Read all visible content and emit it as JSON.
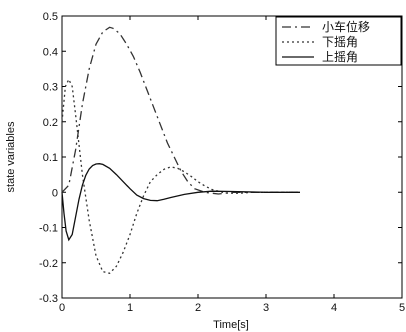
{
  "chart_data": {
    "type": "line",
    "xlabel": "Time[s]",
    "ylabel": "state variables",
    "xlim": [
      0,
      5
    ],
    "ylim": [
      -0.3,
      0.5
    ],
    "xticks": [
      "0",
      "1",
      "2",
      "3",
      "4",
      "5"
    ],
    "yticks": [
      "-0.3",
      "-0.2",
      "-0.1",
      "0",
      "0.1",
      "0.2",
      "0.3",
      "0.4",
      "0.5"
    ],
    "grid": false,
    "legend_position": "top-right",
    "series": [
      {
        "name": "小车位移",
        "style": "dashdot",
        "color": "#333333",
        "x": [
          0,
          0.1,
          0.2,
          0.3,
          0.4,
          0.5,
          0.6,
          0.7,
          0.75,
          0.85,
          0.95,
          1.05,
          1.15,
          1.25,
          1.35,
          1.45,
          1.55,
          1.65,
          1.75,
          1.85,
          1.95,
          2.1,
          2.3,
          2.5,
          2.8,
          3.2,
          3.5
        ],
        "y": [
          0,
          0.02,
          0.12,
          0.25,
          0.35,
          0.42,
          0.455,
          0.468,
          0.465,
          0.45,
          0.42,
          0.385,
          0.34,
          0.29,
          0.24,
          0.19,
          0.14,
          0.1,
          0.06,
          0.03,
          0.01,
          0.0,
          -0.005,
          0.0,
          0.0,
          0.0,
          0.0
        ]
      },
      {
        "name": "下摇角",
        "style": "dotted",
        "color": "#333333",
        "x": [
          0,
          0.05,
          0.1,
          0.15,
          0.2,
          0.3,
          0.4,
          0.5,
          0.6,
          0.7,
          0.8,
          0.9,
          1.0,
          1.1,
          1.2,
          1.3,
          1.4,
          1.5,
          1.6,
          1.7,
          1.8,
          1.9,
          2.0,
          2.1,
          2.2,
          2.4,
          2.6,
          2.8,
          3.0,
          3.5
        ],
        "y": [
          0.2,
          0.3,
          0.32,
          0.3,
          0.22,
          0.05,
          -0.08,
          -0.18,
          -0.225,
          -0.23,
          -0.21,
          -0.17,
          -0.12,
          -0.06,
          -0.01,
          0.03,
          0.05,
          0.065,
          0.072,
          0.068,
          0.058,
          0.045,
          0.03,
          0.018,
          0.008,
          -0.002,
          -0.003,
          0.0,
          0.0,
          0.0
        ]
      },
      {
        "name": "上摇角",
        "style": "solid",
        "color": "#111111",
        "x": [
          0,
          0.03,
          0.06,
          0.1,
          0.15,
          0.2,
          0.25,
          0.3,
          0.35,
          0.4,
          0.45,
          0.5,
          0.55,
          0.6,
          0.7,
          0.8,
          0.9,
          1.0,
          1.1,
          1.2,
          1.3,
          1.4,
          1.5,
          1.6,
          1.8,
          2.0,
          2.2,
          2.5,
          3.0,
          3.5
        ],
        "y": [
          0,
          -0.06,
          -0.11,
          -0.135,
          -0.12,
          -0.07,
          -0.02,
          0.02,
          0.048,
          0.066,
          0.076,
          0.08,
          0.081,
          0.079,
          0.068,
          0.05,
          0.03,
          0.01,
          -0.008,
          -0.018,
          -0.023,
          -0.024,
          -0.02,
          -0.015,
          -0.006,
          0.0,
          0.003,
          0.002,
          0.0,
          0.0
        ]
      }
    ]
  }
}
